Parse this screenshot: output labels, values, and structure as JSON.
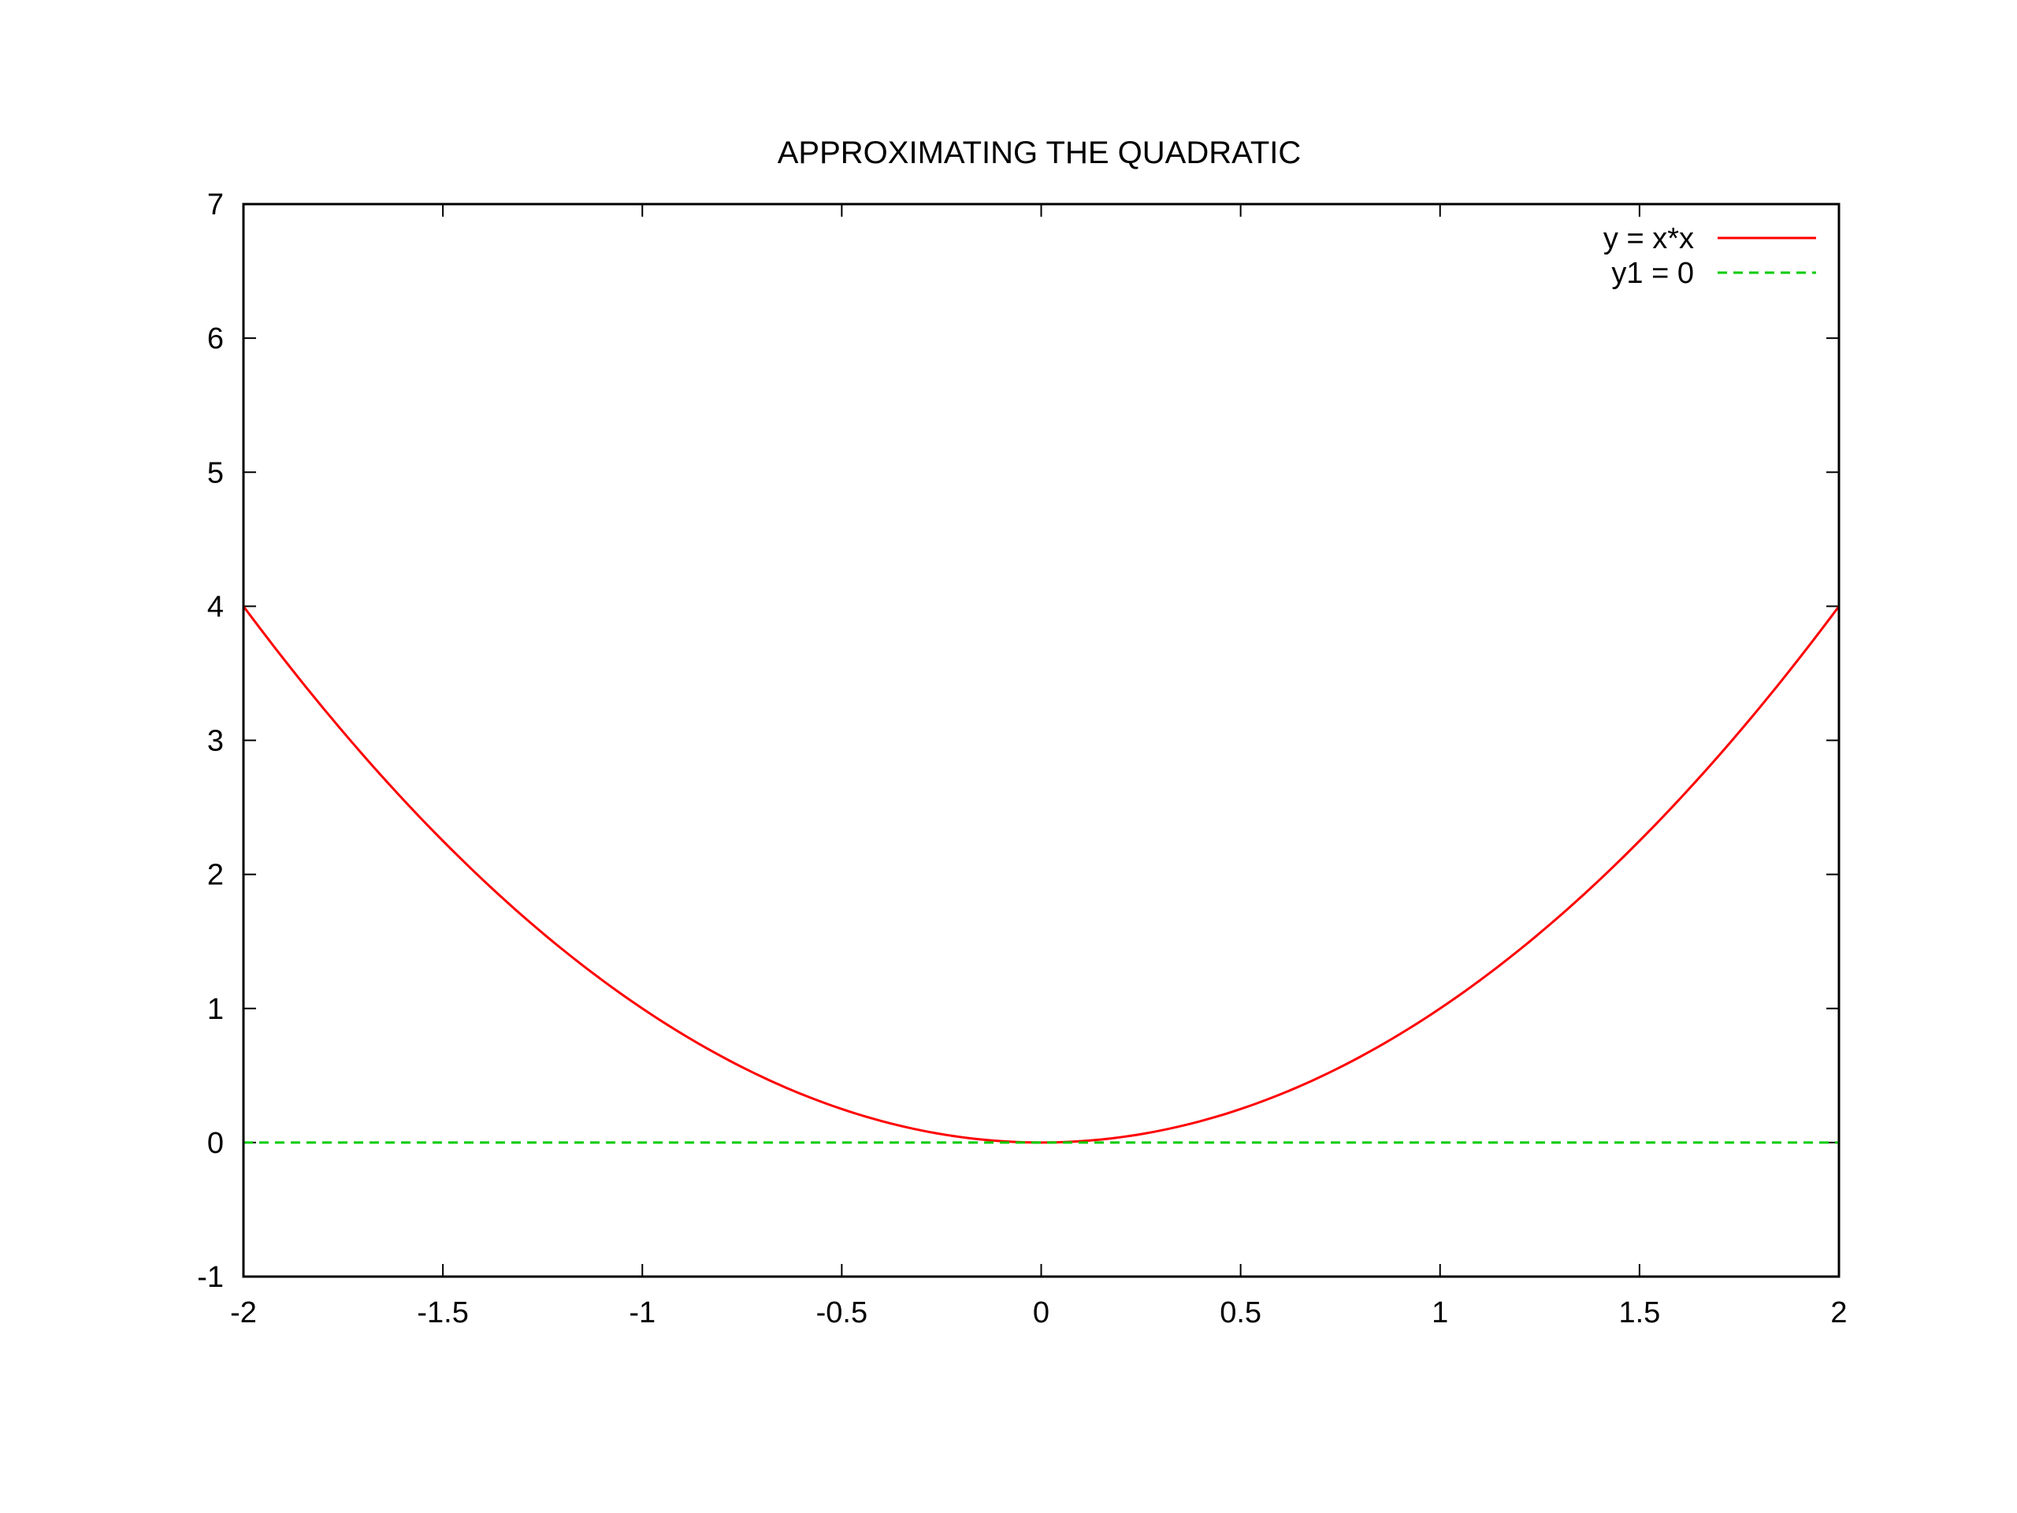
{
  "chart_data": {
    "type": "line",
    "title": "APPROXIMATING THE QUADRATIC",
    "xlabel": "",
    "ylabel": "",
    "xlim": [
      -2,
      2
    ],
    "ylim": [
      -1,
      7
    ],
    "xticks": [
      "-2",
      "-1.5",
      "-1",
      "-0.5",
      "0",
      "0.5",
      "1",
      "1.5",
      "2"
    ],
    "yticks": [
      "-1",
      "0",
      "1",
      "2",
      "3",
      "4",
      "5",
      "6",
      "7"
    ],
    "grid": false,
    "legend_position": "top-right",
    "series": [
      {
        "name": "y = x*x",
        "color": "#ff0000",
        "dash": "solid",
        "x": [
          -2,
          -1.75,
          -1.5,
          -1.25,
          -1,
          -0.75,
          -0.5,
          -0.25,
          0,
          0.25,
          0.5,
          0.75,
          1,
          1.25,
          1.5,
          1.75,
          2
        ],
        "y": [
          4,
          3.0625,
          2.25,
          1.5625,
          1,
          0.5625,
          0.25,
          0.0625,
          0,
          0.0625,
          0.25,
          0.5625,
          1,
          1.5625,
          2.25,
          3.0625,
          4
        ]
      },
      {
        "name": "y1 = 0",
        "color": "#00cc00",
        "dash": "dashed",
        "x": [
          -2,
          2
        ],
        "y": [
          0,
          0
        ]
      }
    ]
  }
}
